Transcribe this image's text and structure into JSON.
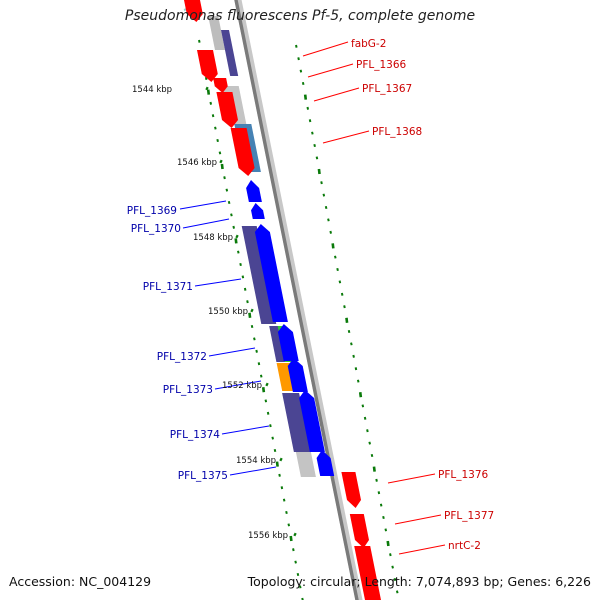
{
  "map": {
    "title": "Pseudomonas fluorescens Pf-5, complete genome",
    "accession_label": "Accession: NC_004129",
    "summary_label": "Topology: circular; Length: 7,074,893 bp; Genes: 6,226"
  },
  "kbp_labels": [
    "1544 kbp",
    "1546 kbp",
    "1548 kbp",
    "1550 kbp",
    "1552 kbp",
    "1554 kbp",
    "1556 kbp"
  ],
  "colors": {
    "backbone": "#888888",
    "tick": "#0a7a0a",
    "forward_gene": "#0000ff",
    "reverse_gene": "#ff0000",
    "forward_label": "#0000aa",
    "reverse_label": "#cc0000",
    "cds_dark": "#4b4593",
    "cds_light_blue": "#4682b4",
    "cds_gray": "#c4c4c4",
    "cds_green": "#33cc33",
    "cds_orange": "#ff9900"
  },
  "gene_labels": [
    {
      "name": "fabG-2",
      "side": "right"
    },
    {
      "name": "PFL_1366",
      "side": "right"
    },
    {
      "name": "PFL_1367",
      "side": "right"
    },
    {
      "name": "PFL_1368",
      "side": "right"
    },
    {
      "name": "PFL_1369",
      "side": "left"
    },
    {
      "name": "PFL_1370",
      "side": "left"
    },
    {
      "name": "PFL_1371",
      "side": "left"
    },
    {
      "name": "PFL_1372",
      "side": "left"
    },
    {
      "name": "PFL_1373",
      "side": "left"
    },
    {
      "name": "PFL_1374",
      "side": "left"
    },
    {
      "name": "PFL_1375",
      "side": "left"
    },
    {
      "name": "PFL_1376",
      "side": "right"
    },
    {
      "name": "PFL_1377",
      "side": "right"
    },
    {
      "name": "nrtC-2",
      "side": "right"
    }
  ]
}
